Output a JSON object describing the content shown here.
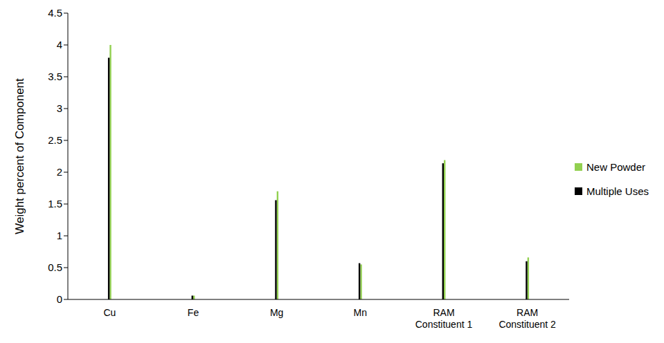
{
  "chart_data": {
    "type": "bar",
    "y_label": "Weight percent of Component",
    "categories": [
      "Cu",
      "Fe",
      "Mg",
      "Mn",
      "RAM Constituent 1",
      "RAM Constituent 2"
    ],
    "series": [
      {
        "name": "New Powder",
        "color": "#92d050",
        "values": [
          4.0,
          0.06,
          1.7,
          0.55,
          2.19,
          0.66
        ]
      },
      {
        "name": "Multiple Uses",
        "color": "#000000",
        "values": [
          3.8,
          0.06,
          1.56,
          0.57,
          2.14,
          0.6
        ]
      }
    ],
    "ylim": [
      0,
      4.5
    ],
    "yticks": [
      0,
      0.5,
      1,
      1.5,
      2,
      2.5,
      3,
      3.5,
      4,
      4.5
    ],
    "grid": false,
    "legend": "right"
  }
}
